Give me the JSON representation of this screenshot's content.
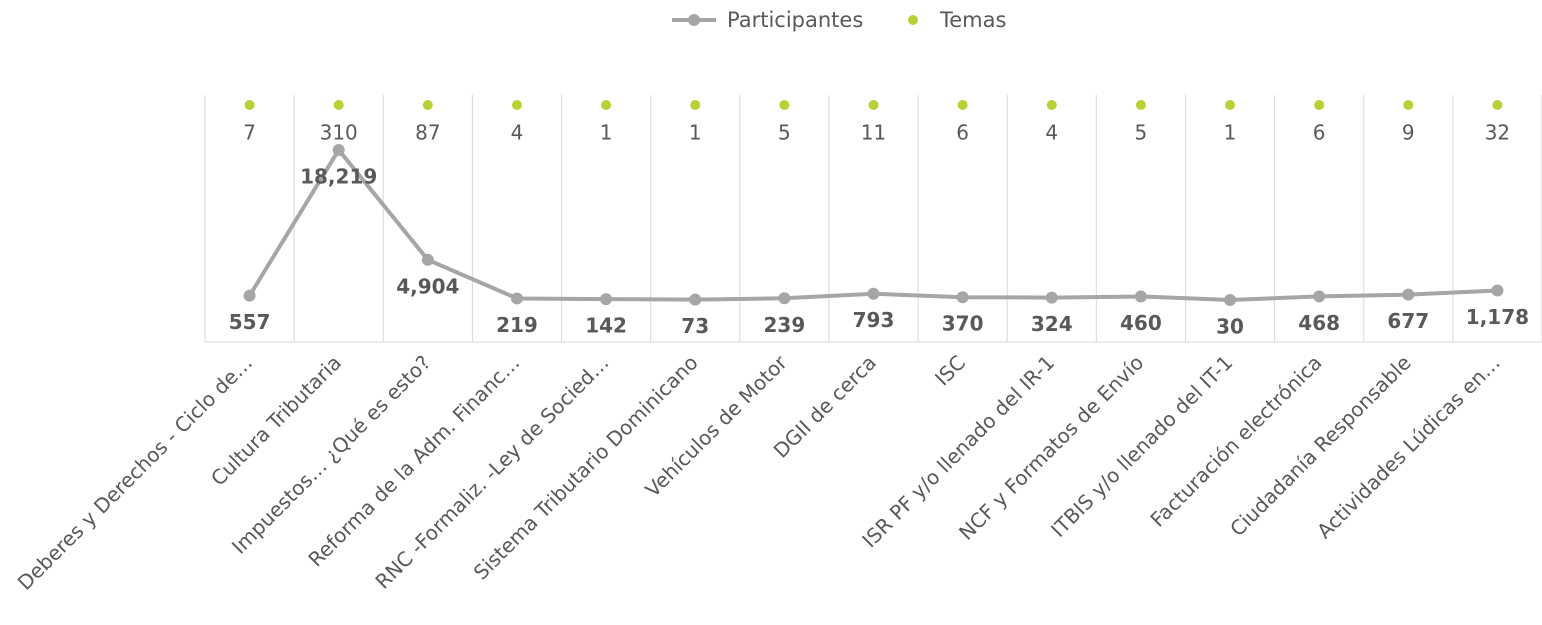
{
  "chart_data": {
    "type": "line",
    "categories": [
      "Deberes y Derechos - Ciclo de…",
      "Cultura Tributaria",
      "Impuestos… ¿Qué es esto?",
      "Reforma de la Adm. Financ…",
      "RNC -Formaliz. -Ley de Socied…",
      "Sistema Tributario Dominicano",
      "Vehículos de Motor",
      "DGII de cerca",
      "ISC",
      "ISR PF y/o llenado del IR-1",
      "NCF y Formatos de Envío",
      "ITBIS y/o llenado del IT-1",
      "Facturación electrónica",
      "Ciudadanía Responsable",
      "Actividades Lúdicas en…"
    ],
    "series": [
      {
        "name": "Participantes",
        "color": "#a6a6a6",
        "values": [
          557,
          18219,
          4904,
          219,
          142,
          73,
          239,
          793,
          370,
          324,
          460,
          30,
          468,
          677,
          1178
        ],
        "value_labels": [
          "557",
          "18,219",
          "4,904",
          "219",
          "142",
          "73",
          "239",
          "793",
          "370",
          "324",
          "460",
          "30",
          "468",
          "677",
          "1,178"
        ]
      },
      {
        "name": "Temas",
        "color": "#b5d334",
        "values": [
          7,
          310,
          87,
          4,
          1,
          1,
          5,
          11,
          6,
          4,
          5,
          1,
          6,
          9,
          32
        ]
      }
    ],
    "grid": true,
    "legend": "top"
  }
}
